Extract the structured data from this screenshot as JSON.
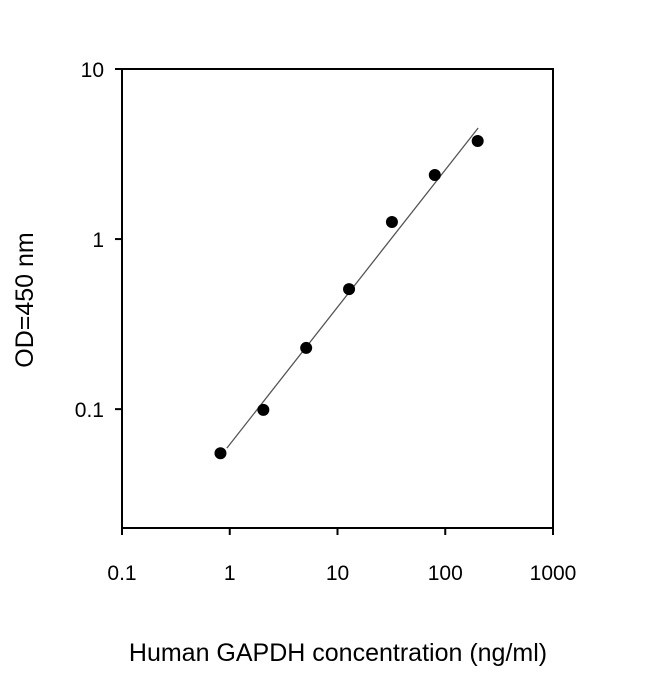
{
  "chart_data": {
    "type": "scatter",
    "title": "",
    "xlabel": "Human GAPDH concentration (ng/ml)",
    "ylabel": "OD=450 nm",
    "x_scale": "log",
    "y_scale": "log",
    "xlim": [
      0.1,
      1000
    ],
    "ylim": [
      0.02,
      10
    ],
    "x_ticks": [
      0.1,
      1,
      10,
      100,
      1000
    ],
    "x_tick_labels": [
      "0.1",
      "1",
      "10",
      "100",
      "1000"
    ],
    "y_ticks": [
      0.1,
      1,
      10
    ],
    "y_tick_labels": [
      "0.1",
      "1",
      "10"
    ],
    "grid": false,
    "series": [
      {
        "x": [
          0.82,
          2.05,
          5.12,
          12.8,
          32,
          80,
          200
        ],
        "y": [
          0.055,
          0.099,
          0.229,
          0.508,
          1.26,
          2.38,
          3.77
        ],
        "marker": "circle",
        "color": "#000000"
      }
    ],
    "fit_line": {
      "x": [
        0.94,
        202
      ],
      "y": [
        0.059,
        4.5
      ],
      "color": "#555555"
    }
  }
}
